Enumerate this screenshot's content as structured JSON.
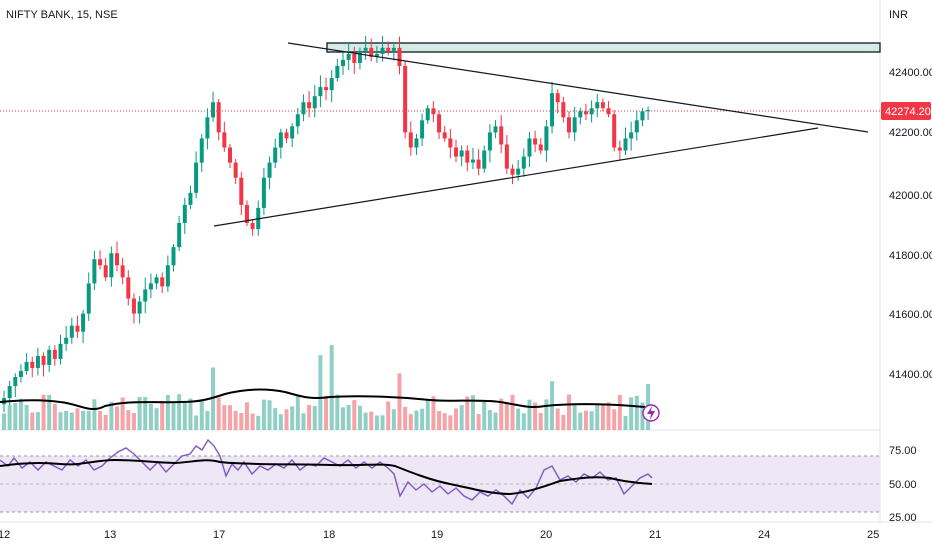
{
  "header": {
    "symbol_title": "NIFTY BANK, 15, NSE",
    "currency": "INR"
  },
  "colors": {
    "up": "#089981",
    "down": "#f23645",
    "vol_up": "#8fcfc5",
    "vol_down": "#f5a3a9",
    "rsi": "#7e57c2",
    "rsi_band": "#ede7f6",
    "zone_fill": "#d4ece6",
    "price_tag": "#f23645"
  },
  "price_axis": {
    "ticks": [
      "42400.00",
      "42200.00",
      "42000.00",
      "41800.00",
      "41600.00",
      "41400.00"
    ],
    "current_price": "42274.20"
  },
  "rsi_axis": {
    "ticks": [
      "75.00",
      "50.00",
      "25.00"
    ]
  },
  "time_axis": {
    "labels": [
      "12",
      "13",
      "17",
      "18",
      "19",
      "20",
      "21",
      "24",
      "25"
    ]
  },
  "chart_data": {
    "type": "candlestick",
    "title": "NIFTY BANK, 15, NSE",
    "y_range": [
      41280,
      42520
    ],
    "current_price": 42274.2,
    "candles_close_approx": [
      41320,
      41360,
      41390,
      41410,
      41440,
      41420,
      41460,
      41430,
      41480,
      41450,
      41500,
      41520,
      41560,
      41540,
      41600,
      41700,
      41780,
      41760,
      41720,
      41800,
      41760,
      41720,
      41650,
      41600,
      41640,
      41680,
      41700,
      41720,
      41690,
      41760,
      41820,
      41900,
      41960,
      42000,
      42100,
      42180,
      42250,
      42300,
      42200,
      42150,
      42100,
      42050,
      41960,
      41900,
      41880,
      41950,
      42050,
      42100,
      42150,
      42200,
      42180,
      42220,
      42260,
      42300,
      42280,
      42320,
      42350,
      42340,
      42380,
      42420,
      42440,
      42460,
      42430,
      42470,
      42480,
      42450,
      42460,
      42480,
      42470,
      42480,
      42420,
      42200,
      42150,
      42180,
      42240,
      42280,
      42260,
      42200,
      42180,
      42150,
      42120,
      42140,
      42100,
      42110,
      42080,
      42140,
      42200,
      42220,
      42160,
      42080,
      42060,
      42080,
      42120,
      42180,
      42160,
      42140,
      42220,
      42330,
      42300,
      42250,
      42200,
      42250,
      42270,
      42260,
      42280,
      42300,
      42280,
      42260,
      42150,
      42140,
      42180,
      42200,
      42240,
      42270,
      42274
    ],
    "annotations": {
      "resistance_zone": [
        42470,
        42500
      ],
      "triangle_upper_line": [
        [
          42510,
          42210
        ]
      ],
      "triangle_lower_line": [
        [
          41920,
          42210
        ]
      ]
    },
    "rsi": {
      "ylim": [
        25,
        80
      ],
      "levels": [
        70,
        50,
        30
      ]
    }
  }
}
